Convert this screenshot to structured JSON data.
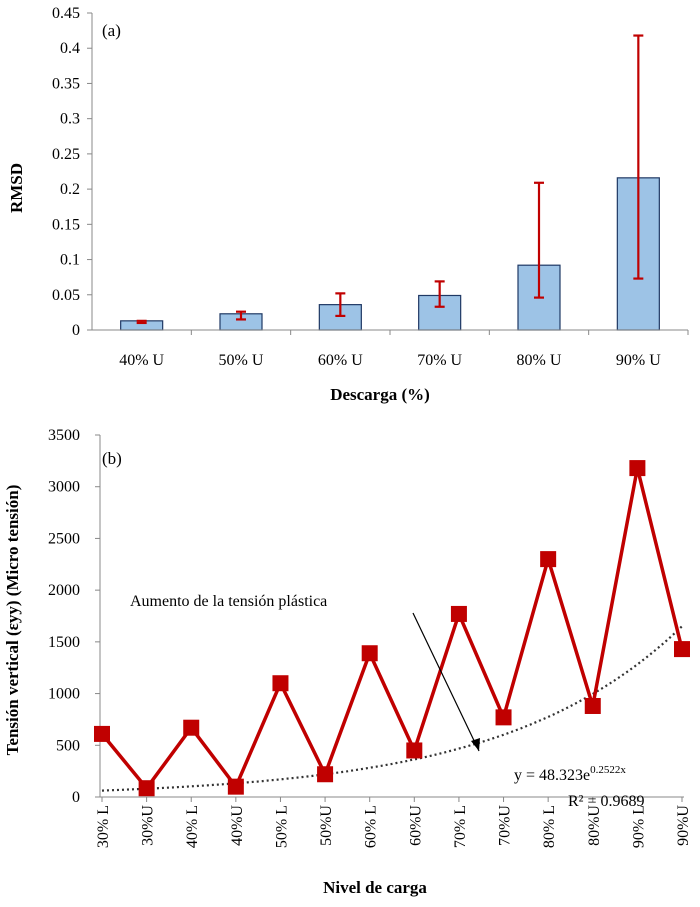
{
  "chart_data": [
    {
      "type": "bar",
      "panel_label": "(a)",
      "categories": [
        "40% U",
        "50% U",
        "60% U",
        "70% U",
        "80% U",
        "90% U"
      ],
      "values": [
        0.013,
        0.023,
        0.036,
        0.049,
        0.092,
        0.216
      ],
      "error_low": [
        0.01,
        0.015,
        0.02,
        0.033,
        0.046,
        0.073
      ],
      "error_high": [
        0.013,
        0.026,
        0.052,
        0.069,
        0.209,
        0.418
      ],
      "xlabel": "Descarga (%)",
      "ylabel": "RMSD",
      "ylim": [
        0,
        0.45
      ],
      "yticks": [
        "0",
        "0.05",
        "0.1",
        "0.15",
        "0.2",
        "0.25",
        "0.3",
        "0.35",
        "0.4",
        "0.45"
      ],
      "grid": false,
      "colors": {
        "bar_fill": "#9dc3e6",
        "bar_stroke": "#1f3864",
        "error_bar": "#c00000"
      }
    },
    {
      "type": "line",
      "panel_label": "(b)",
      "categories": [
        "30% L",
        "30%U",
        "40% L",
        "40%U",
        "50% L",
        "50%U",
        "60% L",
        "60%U",
        "70% L",
        "70%U",
        "80% L",
        "80%U",
        "90% L",
        "90%U"
      ],
      "series": [
        {
          "name": "Tensión vertical",
          "values": [
            610,
            85,
            670,
            100,
            1100,
            220,
            1390,
            450,
            1770,
            770,
            2300,
            880,
            3180,
            1430
          ]
        }
      ],
      "trendline": {
        "type": "exponential",
        "a": 48.323,
        "b": 0.2522,
        "equation_base": "y = 48.323e",
        "equation_exponent": "0.2522x",
        "r2_text": "R² = 0.9689"
      },
      "annotation": "Aumento de la tensión plástica",
      "xlabel": "Nivel de carga",
      "ylabel": "Tensión vertical (εyy) (Micro tensión)",
      "ylim": [
        0,
        3500
      ],
      "yticks": [
        "0",
        "500",
        "1000",
        "1500",
        "2000",
        "2500",
        "3000",
        "3500"
      ],
      "grid": false,
      "colors": {
        "line": "#c00000",
        "marker": "#c00000",
        "trend": "#333333"
      }
    }
  ]
}
